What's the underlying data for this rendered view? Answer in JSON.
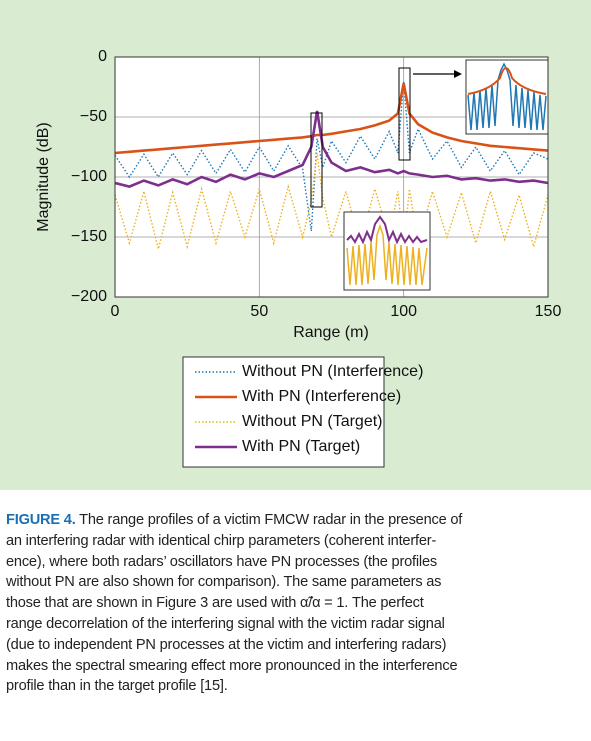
{
  "chart_data": {
    "type": "line",
    "xlabel": "Range (m)",
    "ylabel": "Magnitude (dB)",
    "x": [
      0,
      5,
      10,
      15,
      20,
      25,
      30,
      35,
      40,
      45,
      50,
      55,
      60,
      65,
      68,
      70,
      72,
      75,
      80,
      85,
      90,
      95,
      98,
      100,
      102,
      105,
      110,
      115,
      120,
      125,
      130,
      135,
      140,
      145,
      150
    ],
    "series": [
      {
        "name": "Without PN (Interference)",
        "color": "#1f77b4",
        "style": "dotted",
        "values": [
          -82,
          -100,
          -81,
          -100,
          -80,
          -98,
          -78,
          -97,
          -77,
          -96,
          -75,
          -95,
          -74,
          -93,
          -145,
          -68,
          -92,
          -70,
          -88,
          -66,
          -85,
          -62,
          -80,
          -20,
          -80,
          -60,
          -85,
          -70,
          -92,
          -75,
          -95,
          -78,
          -98,
          -80,
          -85
        ]
      },
      {
        "name": "With PN (Interference)",
        "color": "#d95319",
        "style": "solid",
        "values": [
          -80,
          -79,
          -78,
          -77,
          -76,
          -75,
          -74,
          -73,
          -72,
          -71,
          -70,
          -69,
          -68,
          -67,
          -66,
          -65,
          -65,
          -64,
          -62,
          -60,
          -57,
          -53,
          -47,
          -22,
          -47,
          -56,
          -63,
          -67,
          -70,
          -72,
          -74,
          -75,
          -76,
          -77,
          -78
        ]
      },
      {
        "name": "Without PN (Target)",
        "color": "#edb120",
        "style": "dotted",
        "values": [
          -115,
          -155,
          -112,
          -160,
          -113,
          -158,
          -110,
          -155,
          -112,
          -150,
          -110,
          -155,
          -108,
          -150,
          -120,
          -80,
          -118,
          -150,
          -112,
          -155,
          -110,
          -150,
          -112,
          -158,
          -110,
          -155,
          -112,
          -150,
          -113,
          -155,
          -112,
          -152,
          -115,
          -158,
          -115
        ]
      },
      {
        "name": "With PN (Target)",
        "color": "#7e2f8e",
        "style": "solid",
        "values": [
          -105,
          -108,
          -103,
          -107,
          -102,
          -106,
          -100,
          -104,
          -98,
          -102,
          -97,
          -100,
          -95,
          -90,
          -75,
          -45,
          -75,
          -88,
          -95,
          -92,
          -96,
          -94,
          -97,
          -95,
          -97,
          -98,
          -100,
          -99,
          -102,
          -101,
          -103,
          -102,
          -104,
          -103,
          -105
        ]
      }
    ],
    "xlim": [
      0,
      150
    ],
    "xticks": [
      0,
      50,
      100,
      150
    ],
    "ylim": [
      -200,
      0
    ],
    "yticks": [
      0,
      {
        "value": -50,
        "label": "−50"
      },
      {
        "value": -100,
        "label": "−100"
      },
      {
        "value": -150,
        "label": "−150"
      },
      {
        "value": -200,
        "label": "−200"
      }
    ],
    "grid": true
  },
  "caption": {
    "label": "FIGURE 4.",
    "lines": [
      " The range profiles of a victim FMCW radar in the presence of",
      "an interfering radar with identical chirp parameters (coherent interfer-",
      "ence), where both radars’ oscillators have PN processes (the profiles",
      "without PN are also shown for comparison). The same parameters as",
      "those that are shown in Figure 3 are used with α̃/α = 1. The perfect",
      "range decorrelation of the interfering signal with the victim radar signal",
      "(due to independent PN processes at the victim and interfering radars)",
      "makes the spectral smearing effect more pronounced in the interference",
      "profile than in the target profile [15]."
    ]
  }
}
